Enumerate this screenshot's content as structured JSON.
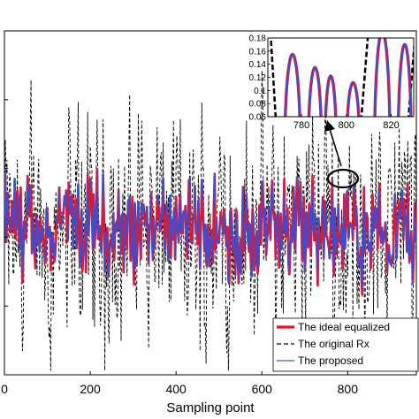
{
  "chart_data": {
    "type": "line",
    "xlabel": "Sampling point",
    "ylabel": "",
    "title": "",
    "xlim": [
      0,
      960
    ],
    "ylim": [
      -3.5,
      4.75
    ],
    "x_ticks": [
      "0",
      "200",
      "400",
      "600",
      "800"
    ],
    "grid": false,
    "legend_position": "bottom-right",
    "series": [
      {
        "name": "The ideal equalized",
        "color": "#e8141e",
        "style": "solid-thick"
      },
      {
        "name": "The original Rx",
        "color": "#000000",
        "style": "dashed"
      },
      {
        "name": "The proposed",
        "color": "#3b4fd8",
        "style": "solid-thin"
      }
    ],
    "annotation": {
      "target_x": 790,
      "target_y": 0.55,
      "shape": "ellipse"
    },
    "inset": {
      "xlim": [
        765,
        830
      ],
      "ylim": [
        0.06,
        0.18
      ],
      "x_ticks": [
        "780",
        "800",
        "820"
      ],
      "y_ticks": [
        "0.06",
        "0.08",
        "0.1",
        "0.12",
        "0.14",
        "0.16",
        "0.18"
      ]
    }
  }
}
